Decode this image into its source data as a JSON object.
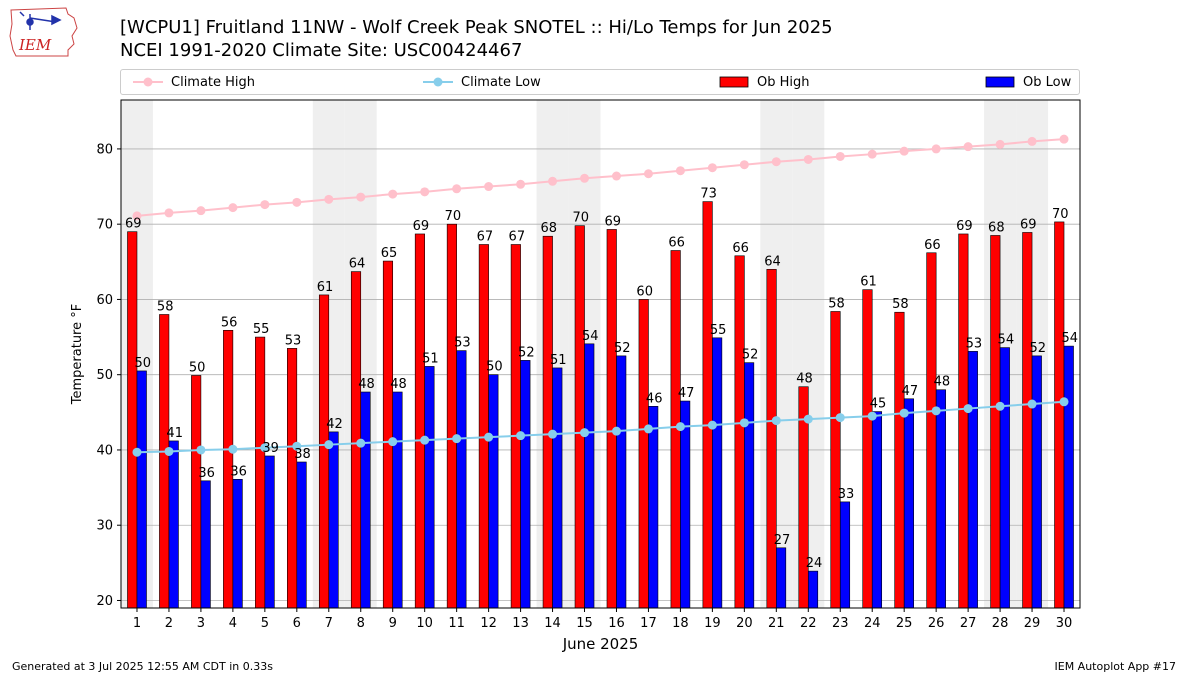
{
  "header": {
    "title_line1": "[WCPU1] Fruitland 11NW - Wolf Creek Peak SNOTEL :: Hi/Lo Temps for Jun 2025",
    "title_line2": "NCEI 1991-2020 Climate Site: USC00424467"
  },
  "logo": {
    "text": "IEM",
    "color": "#cc2222",
    "icon": "iowa-state-outline-weather-station"
  },
  "legend": {
    "climate_high": "Climate High",
    "climate_low": "Climate Low",
    "ob_high": "Ob High",
    "ob_low": "Ob Low"
  },
  "colors": {
    "ob_high": "#ff0000",
    "ob_low": "#0000ff",
    "climate_high": "#ffc0cb",
    "climate_low": "#87ceeb",
    "weekend_band": "#efefef",
    "grid": "#b0b0b0"
  },
  "footer": {
    "left": "Generated at 3 Jul 2025 12:55 AM CDT in 0.33s",
    "right": "IEM Autoplot App #17"
  },
  "chart_data": {
    "type": "bar",
    "title": "[WCPU1] Fruitland 11NW - Wolf Creek Peak SNOTEL :: Hi/Lo Temps for Jun 2025",
    "xlabel": "June 2025",
    "ylabel": "Temperature °F",
    "ylim": [
      19,
      86.5
    ],
    "yticks": [
      20,
      30,
      40,
      50,
      60,
      70,
      80
    ],
    "grid": true,
    "legend_position": "top",
    "categories": [
      1,
      2,
      3,
      4,
      5,
      6,
      7,
      8,
      9,
      10,
      11,
      12,
      13,
      14,
      15,
      16,
      17,
      18,
      19,
      20,
      21,
      22,
      23,
      24,
      25,
      26,
      27,
      28,
      29,
      30
    ],
    "weekend_days": [
      1,
      7,
      8,
      14,
      15,
      21,
      22,
      28,
      29
    ],
    "series": [
      {
        "name": "Ob High",
        "type": "bar",
        "values": [
          69,
          58,
          50,
          56,
          55,
          53,
          61,
          64,
          65,
          69,
          70,
          67,
          67,
          68,
          70,
          69,
          60,
          66,
          73,
          66,
          64,
          48,
          58,
          61,
          58,
          66,
          69,
          68,
          69,
          70
        ],
        "exact": [
          69.0,
          58.0,
          49.9,
          55.9,
          55.0,
          53.5,
          60.6,
          63.7,
          65.1,
          68.7,
          70.0,
          67.3,
          67.3,
          68.4,
          69.8,
          69.3,
          60.0,
          66.5,
          73.0,
          65.8,
          64.0,
          48.4,
          58.4,
          61.3,
          58.3,
          66.2,
          68.7,
          68.5,
          68.9,
          70.3
        ]
      },
      {
        "name": "Ob Low",
        "type": "bar",
        "values": [
          50,
          41,
          36,
          36,
          39,
          38,
          42,
          48,
          48,
          51,
          53,
          50,
          52,
          51,
          54,
          52,
          46,
          47,
          55,
          52,
          27,
          24,
          33,
          45,
          47,
          48,
          53,
          54,
          52,
          54
        ],
        "exact": [
          50.5,
          41.2,
          35.9,
          36.1,
          39.2,
          38.4,
          42.4,
          47.7,
          47.7,
          51.1,
          53.2,
          50.0,
          51.9,
          50.9,
          54.1,
          52.5,
          45.8,
          46.5,
          54.9,
          51.6,
          27.0,
          23.9,
          33.1,
          45.1,
          46.8,
          48.0,
          53.1,
          53.6,
          52.5,
          53.8
        ]
      },
      {
        "name": "Climate High",
        "type": "line",
        "values": [
          71.1,
          71.5,
          71.8,
          72.2,
          72.6,
          72.9,
          73.3,
          73.6,
          74.0,
          74.3,
          74.7,
          75.0,
          75.3,
          75.7,
          76.1,
          76.4,
          76.7,
          77.1,
          77.5,
          77.9,
          78.3,
          78.6,
          79.0,
          79.3,
          79.7,
          80.0,
          80.3,
          80.6,
          81.0,
          81.3
        ]
      },
      {
        "name": "Climate Low",
        "type": "line",
        "values": [
          39.7,
          39.8,
          40.0,
          40.1,
          40.3,
          40.5,
          40.7,
          40.9,
          41.1,
          41.3,
          41.5,
          41.7,
          41.9,
          42.1,
          42.3,
          42.5,
          42.8,
          43.1,
          43.3,
          43.6,
          43.9,
          44.1,
          44.3,
          44.5,
          44.9,
          45.2,
          45.5,
          45.8,
          46.1,
          46.4
        ]
      }
    ]
  }
}
